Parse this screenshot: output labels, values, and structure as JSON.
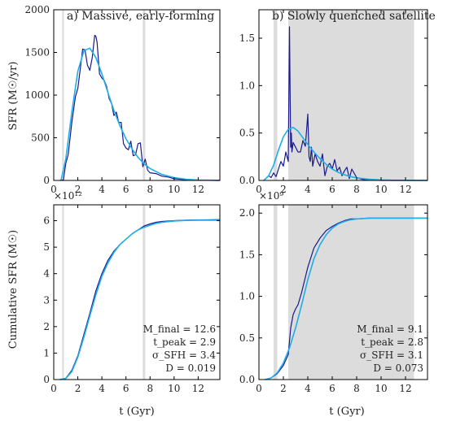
{
  "figure": {
    "xlabel": "t (Gyr)",
    "colors": {
      "data": "#1a1a8c",
      "fit": "#1eaee8",
      "shade": "#dcdcdc",
      "frame": "#000000"
    }
  },
  "chart_data": [
    {
      "type": "line",
      "panel": "top-left",
      "title": "a) Massive, early-forming",
      "ylabel": "SFR (M☉/yr)",
      "xlim": [
        0,
        13.8
      ],
      "ylim": [
        0,
        2000
      ],
      "xticks": [
        0,
        2,
        4,
        6,
        8,
        10,
        12
      ],
      "yticks": [
        0,
        500,
        1000,
        1500,
        2000
      ],
      "shaded": [
        [
          0.7,
          0.85
        ],
        [
          7.4,
          7.6
        ]
      ],
      "series": [
        {
          "role": "data",
          "x": [
            0.5,
            0.8,
            1.0,
            1.2,
            1.5,
            1.8,
            2.0,
            2.2,
            2.4,
            2.6,
            2.8,
            3.0,
            3.2,
            3.4,
            3.5,
            3.6,
            3.8,
            4.0,
            4.2,
            4.4,
            4.6,
            4.8,
            5.0,
            5.2,
            5.4,
            5.6,
            5.8,
            6.0,
            6.2,
            6.4,
            6.6,
            6.8,
            7.0,
            7.2,
            7.4,
            7.6,
            7.8,
            8.0,
            8.5,
            9.0,
            9.5,
            10.0,
            11,
            12,
            13.8
          ],
          "y": [
            0,
            5,
            200,
            300,
            680,
            980,
            1080,
            1300,
            1540,
            1530,
            1350,
            1290,
            1440,
            1700,
            1690,
            1620,
            1250,
            1200,
            1170,
            1100,
            960,
            900,
            760,
            800,
            680,
            680,
            430,
            380,
            360,
            460,
            290,
            300,
            430,
            440,
            160,
            250,
            120,
            90,
            80,
            50,
            40,
            20,
            8,
            3,
            0
          ]
        },
        {
          "role": "fit",
          "x": [
            0.6,
            1.0,
            1.5,
            2.0,
            2.5,
            3.0,
            3.5,
            4.0,
            4.5,
            5.0,
            5.5,
            6.0,
            6.5,
            7.0,
            7.5,
            8.0,
            9.0,
            10.0,
            11.0,
            12.0,
            13.8
          ],
          "y": [
            0,
            250,
            800,
            1280,
            1520,
            1550,
            1440,
            1250,
            1030,
            820,
            640,
            490,
            370,
            270,
            195,
            140,
            70,
            33,
            14,
            5,
            1
          ]
        }
      ]
    },
    {
      "type": "line",
      "panel": "top-right",
      "title": "b) Slowly quenched satellite",
      "xlim": [
        0,
        13.8
      ],
      "ylim": [
        0,
        1.8
      ],
      "xticks": [
        0,
        2,
        4,
        6,
        8,
        10,
        12
      ],
      "yticks": [
        0.0,
        0.5,
        1.0,
        1.5
      ],
      "shaded": [
        [
          1.2,
          1.5
        ],
        [
          2.4,
          12.7
        ]
      ],
      "series": [
        {
          "role": "data",
          "x": [
            0.4,
            0.8,
            1.0,
            1.2,
            1.4,
            1.6,
            1.8,
            2.0,
            2.2,
            2.4,
            2.5,
            2.55,
            2.6,
            2.65,
            2.7,
            2.8,
            3.0,
            3.2,
            3.4,
            3.6,
            3.8,
            4.0,
            4.1,
            4.2,
            4.3,
            4.4,
            4.6,
            4.8,
            5.0,
            5.2,
            5.4,
            5.6,
            5.8,
            6.0,
            6.2,
            6.4,
            6.6,
            6.8,
            7.0,
            7.2,
            7.4,
            7.6,
            8.0,
            8.5,
            9,
            10,
            13.8
          ],
          "y": [
            0,
            0.05,
            0.03,
            0.08,
            0.04,
            0.12,
            0.2,
            0.15,
            0.3,
            0.2,
            1.62,
            0.9,
            0.35,
            0.5,
            0.3,
            0.4,
            0.35,
            0.3,
            0.3,
            0.42,
            0.36,
            0.7,
            0.25,
            0.2,
            0.35,
            0.15,
            0.28,
            0.2,
            0.15,
            0.28,
            0.05,
            0.15,
            0.18,
            0.12,
            0.22,
            0.1,
            0.14,
            0.05,
            0.1,
            0.14,
            0.02,
            0.12,
            0.03,
            0.01,
            0.005,
            0,
            0
          ]
        },
        {
          "role": "fit",
          "x": [
            0.4,
            0.8,
            1.2,
            1.6,
            2.0,
            2.4,
            2.8,
            3.2,
            3.6,
            4.0,
            4.5,
            5.0,
            5.5,
            6.0,
            6.5,
            7.0,
            7.5,
            8.0,
            9.0,
            10.0,
            11.0,
            13.8
          ],
          "y": [
            0,
            0.05,
            0.16,
            0.32,
            0.46,
            0.54,
            0.56,
            0.52,
            0.45,
            0.38,
            0.3,
            0.23,
            0.17,
            0.12,
            0.085,
            0.06,
            0.04,
            0.027,
            0.012,
            0.005,
            0.002,
            0
          ]
        }
      ]
    },
    {
      "type": "line",
      "panel": "bottom-left",
      "ylabel": "Cumulative SFR (M☉)",
      "y_multiplier": "×10¹²",
      "xlim": [
        0,
        13.8
      ],
      "ylim": [
        0,
        6.6
      ],
      "xticks": [
        0,
        2,
        4,
        6,
        8,
        10,
        12
      ],
      "yticks": [
        0,
        1,
        2,
        3,
        4,
        5,
        6
      ],
      "shaded": [
        [
          0.7,
          0.85
        ],
        [
          7.4,
          7.6
        ]
      ],
      "series": [
        {
          "role": "data",
          "x": [
            0.5,
            1.0,
            1.5,
            2.0,
            2.5,
            3.0,
            3.5,
            4.0,
            4.5,
            5.0,
            5.5,
            6.0,
            6.5,
            7.0,
            7.5,
            8.0,
            8.5,
            9.0,
            10.0,
            11.0,
            12.0,
            13.8
          ],
          "y": [
            0,
            0.05,
            0.35,
            0.9,
            1.7,
            2.5,
            3.35,
            4.0,
            4.5,
            4.85,
            5.1,
            5.3,
            5.5,
            5.65,
            5.8,
            5.88,
            5.94,
            5.97,
            6.0,
            6.02,
            6.03,
            6.04
          ]
        },
        {
          "role": "fit",
          "x": [
            0.5,
            1.0,
            1.5,
            2.0,
            2.5,
            3.0,
            3.5,
            4.0,
            4.5,
            5.0,
            5.5,
            6.0,
            6.5,
            7.0,
            7.5,
            8.0,
            8.5,
            9.0,
            10.0,
            11.0,
            12.0,
            13.8
          ],
          "y": [
            0,
            0.04,
            0.3,
            0.85,
            1.6,
            2.4,
            3.2,
            3.9,
            4.4,
            4.8,
            5.1,
            5.3,
            5.5,
            5.65,
            5.75,
            5.83,
            5.9,
            5.94,
            5.99,
            6.01,
            6.02,
            6.02
          ]
        }
      ],
      "annotations": [
        "M_final = 12.6",
        "t_peak = 2.9",
        "σ_SFH = 3.4",
        "D = 0.019"
      ]
    },
    {
      "type": "line",
      "panel": "bottom-right",
      "y_multiplier": "×10⁹",
      "xlim": [
        0,
        13.8
      ],
      "ylim": [
        0,
        2.1
      ],
      "xticks": [
        0,
        2,
        4,
        6,
        8,
        10,
        12
      ],
      "yticks": [
        0.0,
        0.5,
        1.0,
        1.5,
        2.0
      ],
      "shaded": [
        [
          1.2,
          1.5
        ],
        [
          2.4,
          12.7
        ]
      ],
      "series": [
        {
          "role": "data",
          "x": [
            0.5,
            1.0,
            1.5,
            2.0,
            2.4,
            2.6,
            2.8,
            3.0,
            3.2,
            3.5,
            4.0,
            4.5,
            5.0,
            5.5,
            6.0,
            6.5,
            7.0,
            7.5,
            8.0,
            9.0,
            10.0,
            11.0,
            13.8
          ],
          "y": [
            0,
            0.02,
            0.07,
            0.17,
            0.3,
            0.62,
            0.78,
            0.85,
            0.9,
            1.05,
            1.35,
            1.58,
            1.7,
            1.79,
            1.84,
            1.88,
            1.91,
            1.93,
            1.93,
            1.94,
            1.94,
            1.94,
            1.94
          ]
        },
        {
          "role": "fit",
          "x": [
            0.5,
            1.0,
            1.5,
            2.0,
            2.5,
            3.0,
            3.5,
            4.0,
            4.5,
            5.0,
            5.5,
            6.0,
            6.5,
            7.0,
            7.5,
            8.0,
            9.0,
            10.0,
            11.0,
            13.8
          ],
          "y": [
            0,
            0.02,
            0.08,
            0.2,
            0.38,
            0.62,
            0.9,
            1.2,
            1.45,
            1.62,
            1.74,
            1.82,
            1.87,
            1.9,
            1.92,
            1.93,
            1.94,
            1.94,
            1.94,
            1.94
          ]
        }
      ],
      "annotations": [
        "M_final = 9.1",
        "t_peak = 2.8",
        "σ_SFH = 3.1",
        "D = 0.073"
      ]
    }
  ]
}
